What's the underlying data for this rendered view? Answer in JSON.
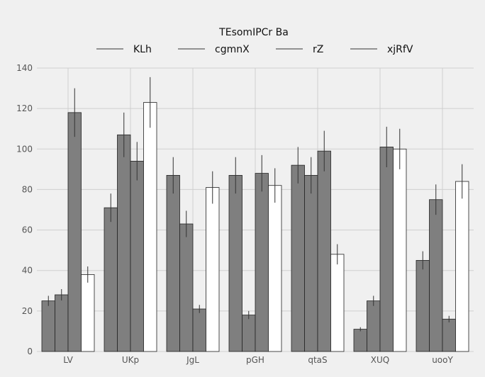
{
  "chart_data": {
    "type": "bar",
    "legend_title": "TEsomIPCr Ba",
    "legend_placement": "top-center",
    "categories": [
      "LV",
      "UKp",
      "JgL",
      "pGH",
      "qtaS",
      "XUQ",
      "uooY"
    ],
    "series": [
      {
        "name": "KLh",
        "color": "#7f7f7f",
        "values": [
          25,
          71,
          87,
          87,
          92,
          11,
          45
        ],
        "errors": [
          2.5,
          7,
          9,
          9,
          9,
          1,
          4.5
        ]
      },
      {
        "name": "cgmnX",
        "color": "#7f7f7f",
        "values": [
          28,
          107,
          63,
          18,
          87,
          25,
          75
        ],
        "errors": [
          2.8,
          11,
          6.5,
          2,
          9,
          2.5,
          7.5
        ]
      },
      {
        "name": "rZ",
        "color": "#7f7f7f",
        "values": [
          118,
          94,
          21,
          88,
          99,
          101,
          16
        ],
        "errors": [
          12,
          9.5,
          2,
          9,
          10,
          10,
          1.6
        ]
      },
      {
        "name": "xjRfV",
        "color": "#ffffff",
        "values": [
          38,
          123,
          81,
          82,
          48,
          100,
          84
        ],
        "errors": [
          4,
          12.5,
          8,
          8.5,
          5,
          10,
          8.5
        ]
      }
    ],
    "y_ticks": [
      "0",
      "20",
      "40",
      "60",
      "80",
      "100",
      "120",
      "140"
    ],
    "ylim": [
      0,
      140
    ],
    "grid": true
  }
}
